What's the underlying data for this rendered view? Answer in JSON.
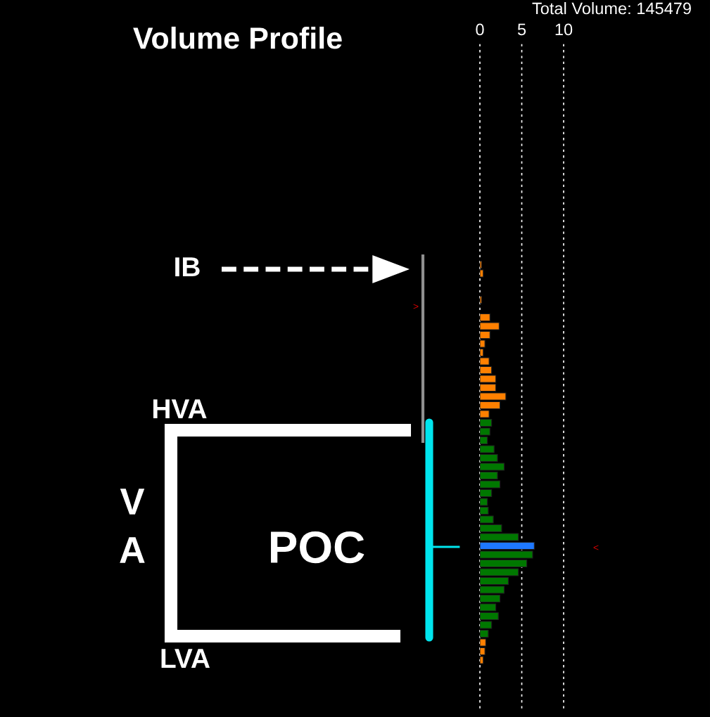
{
  "chart_data": {
    "type": "bar",
    "orientation": "horizontal",
    "title": "Volume Profile",
    "subtitle": "Total Volume: 145479",
    "categories": [
      null,
      null,
      null,
      null,
      null,
      null,
      null,
      null,
      null,
      null,
      null,
      null,
      null,
      null,
      null,
      null,
      null,
      null,
      null,
      null,
      null,
      null,
      null,
      null,
      null,
      null,
      null,
      null,
      null,
      null,
      null,
      null,
      null,
      null,
      null,
      null,
      null,
      null,
      null,
      null,
      null,
      null,
      null,
      null,
      null,
      null,
      null,
      null,
      null,
      null,
      null,
      null,
      null,
      null,
      null,
      null,
      null,
      null,
      null,
      null,
      null,
      null,
      null,
      null,
      null,
      null,
      null,
      null,
      null,
      null,
      null,
      null,
      null,
      null,
      null,
      null
    ],
    "values": [
      null,
      null,
      null,
      null,
      null,
      null,
      null,
      null,
      null,
      null,
      null,
      null,
      null,
      null,
      null,
      null,
      null,
      null,
      null,
      null,
      null,
      null,
      null,
      null,
      null,
      0.2,
      0.4,
      null,
      null,
      0.2,
      null,
      1.2,
      2.3,
      1.2,
      0.6,
      0.4,
      1.1,
      1.4,
      1.9,
      1.9,
      3.1,
      2.4,
      1.1,
      1.4,
      1.2,
      0.9,
      1.7,
      2.1,
      2.9,
      2.1,
      2.4,
      1.4,
      0.9,
      1.0,
      1.6,
      2.6,
      4.6,
      6.5,
      6.3,
      5.6,
      4.6,
      3.4,
      2.9,
      2.4,
      1.9,
      2.2,
      1.4,
      1.0,
      0.7,
      0.6,
      0.4,
      null,
      null,
      null,
      null,
      null
    ],
    "colors": [
      "#ff8000",
      "#ff8000",
      "#ff8000",
      "#ff8000",
      "#ff8000",
      "#ff8000",
      "#ff8000",
      "#ff8000",
      "#ff8000",
      "#ff8000",
      "#ff8000",
      "#ff8000",
      "#ff8000",
      "#ff8000",
      "#ff8000",
      "#ff8000",
      "#ff8000",
      "#ff8000",
      "#ff8000",
      "#ff8000",
      "#ff8000",
      "#ff8000",
      "#ff8000",
      "#ff8000",
      "#ff8000",
      "#ff8000",
      "#ff8000",
      "#ff8000",
      "#ff8000",
      "#ff8000",
      "#ff8000",
      "#ff8000",
      "#ff8000",
      "#ff8000",
      "#ff8000",
      "#ff8000",
      "#ff8000",
      "#ff8000",
      "#ff8000",
      "#ff8000",
      "#ff8000",
      "#ff8000",
      "#ff8000",
      "#007800",
      "#007800",
      "#007800",
      "#007800",
      "#007800",
      "#007800",
      "#007800",
      "#007800",
      "#007800",
      "#007800",
      "#007800",
      "#007800",
      "#007800",
      "#007800",
      "#1e78ff",
      "#007800",
      "#007800",
      "#007800",
      "#007800",
      "#007800",
      "#007800",
      "#007800",
      "#007800",
      "#007800",
      "#007800",
      "#ff8000",
      "#ff8000",
      "#ff8000",
      "#ff8000",
      "#ff8000",
      "#ff8000",
      "#ff8000",
      "#ff8000"
    ],
    "xlim": [
      0,
      10
    ],
    "xticks": [
      0,
      5,
      10
    ],
    "grid": "x",
    "tick_labels": "x",
    "annotations": [
      "IB",
      "HVA",
      "V",
      "A",
      "POC",
      "LVA",
      ">",
      "<"
    ]
  }
}
